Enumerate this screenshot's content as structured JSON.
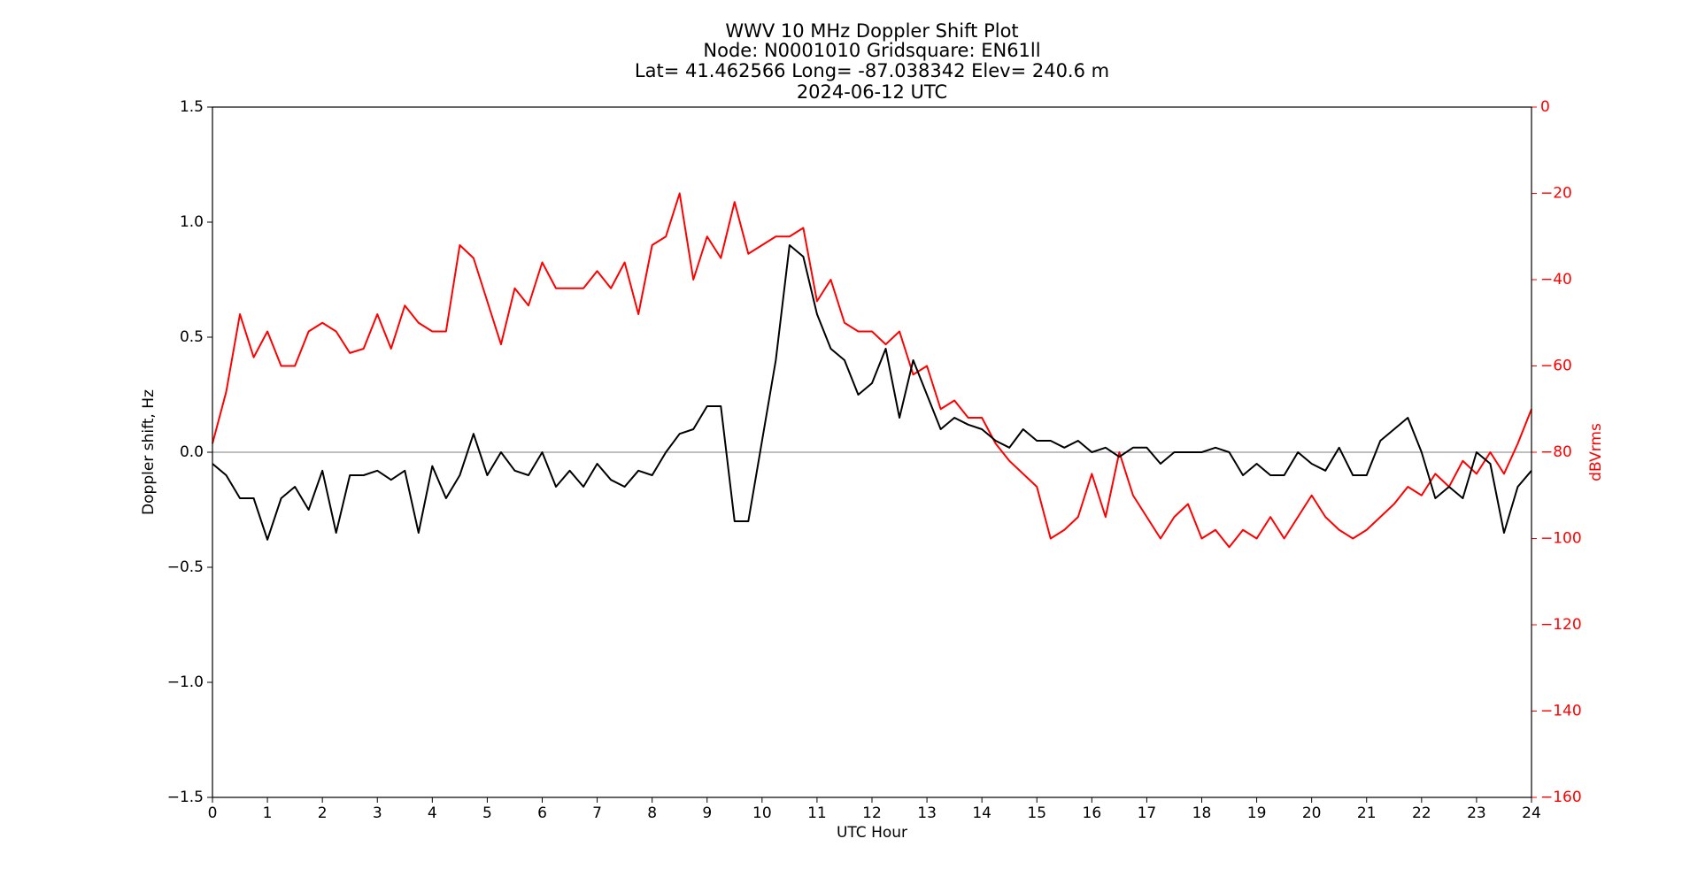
{
  "chart_data": {
    "type": "line",
    "title": [
      "WWV 10 MHz Doppler Shift Plot",
      "Node:  N0001010     Gridsquare:  EN61ll",
      "Lat= 41.462566    Long= -87.038342    Elev= 240.6 m",
      "2024-06-12  UTC"
    ],
    "xlabel": "UTC Hour",
    "ylabel": "Doppler shift, Hz",
    "y2label": "dBVrms",
    "y2color": "#ff0000",
    "xlim": [
      0,
      24
    ],
    "xticks": [
      0,
      1,
      2,
      3,
      4,
      5,
      6,
      7,
      8,
      9,
      10,
      11,
      12,
      13,
      14,
      15,
      16,
      17,
      18,
      19,
      20,
      21,
      22,
      23,
      24
    ],
    "ylim": [
      -1.5,
      1.5
    ],
    "yticks": [
      {
        "value": -1.5,
        "label": "−1.5"
      },
      {
        "value": -1.0,
        "label": "−1.0"
      },
      {
        "value": -0.5,
        "label": "−0.5"
      },
      {
        "value": 0,
        "label": "0.0"
      },
      0.5,
      {
        "value": 1.0,
        "label": "1.0"
      },
      1.5
    ],
    "y2lim": [
      -160,
      0
    ],
    "y2ticks": [
      {
        "value": -160,
        "label": "−160"
      },
      {
        "value": -140,
        "label": "−140"
      },
      {
        "value": -120,
        "label": "−120"
      },
      {
        "value": -100,
        "label": "−100"
      },
      {
        "value": -80,
        "label": "−80"
      },
      {
        "value": -60,
        "label": "−60"
      },
      {
        "value": -40,
        "label": "−40"
      },
      {
        "value": -20,
        "label": "−20"
      },
      0
    ],
    "hline": 0,
    "x": [
      0,
      0.25,
      0.5,
      0.75,
      1,
      1.25,
      1.5,
      1.75,
      2,
      2.25,
      2.5,
      2.75,
      3,
      3.25,
      3.5,
      3.75,
      4,
      4.25,
      4.5,
      4.75,
      5,
      5.25,
      5.5,
      5.75,
      6,
      6.25,
      6.5,
      6.75,
      7,
      7.25,
      7.5,
      7.75,
      8,
      8.25,
      8.5,
      8.75,
      9,
      9.25,
      9.5,
      9.75,
      10,
      10.25,
      10.5,
      10.75,
      11,
      11.25,
      11.5,
      11.75,
      12,
      12.25,
      12.5,
      12.75,
      13,
      13.25,
      13.5,
      13.75,
      14,
      14.25,
      14.5,
      14.75,
      15,
      15.25,
      15.5,
      15.75,
      16,
      16.25,
      16.5,
      16.75,
      17,
      17.25,
      17.5,
      17.75,
      18,
      18.25,
      18.5,
      18.75,
      19,
      19.25,
      19.5,
      19.75,
      20,
      20.25,
      20.5,
      20.75,
      21,
      21.25,
      21.5,
      21.75,
      22,
      22.25,
      22.5,
      22.75,
      23,
      23.25,
      23.5,
      23.75,
      24
    ],
    "series": [
      {
        "color": "#000000",
        "values": [
          -0.05,
          -0.1,
          -0.2,
          -0.2,
          -0.38,
          -0.2,
          -0.15,
          -0.25,
          -0.08,
          -0.35,
          -0.1,
          -0.1,
          -0.08,
          -0.12,
          -0.08,
          -0.35,
          -0.06,
          -0.2,
          -0.1,
          0.08,
          -0.1,
          0.0,
          -0.08,
          -0.1,
          0.0,
          -0.15,
          -0.08,
          -0.15,
          -0.05,
          -0.12,
          -0.15,
          -0.08,
          -0.1,
          0.0,
          0.08,
          0.1,
          0.2,
          0.2,
          -0.3,
          -0.3,
          0.05,
          0.4,
          0.9,
          0.85,
          0.6,
          0.45,
          0.4,
          0.25,
          0.3,
          0.45,
          0.15,
          0.4,
          0.25,
          0.1,
          0.15,
          0.12,
          0.1,
          0.05,
          0.02,
          0.1,
          0.05,
          0.05,
          0.02,
          0.05,
          0.0,
          0.02,
          -0.02,
          0.02,
          0.02,
          -0.05,
          0.0,
          0.0,
          0.0,
          0.02,
          0.0,
          -0.1,
          -0.05,
          -0.1,
          -0.1,
          0.0,
          -0.05,
          -0.08,
          0.02,
          -0.1,
          -0.1,
          0.05,
          0.1,
          0.15,
          0.0,
          -0.2,
          -0.15,
          -0.2,
          0.0,
          -0.05,
          -0.35,
          -0.15,
          -0.08
        ]
      },
      {
        "color": "#ff0000",
        "axis": "y2",
        "values": [
          -78,
          -66,
          -48,
          -58,
          -52,
          -60,
          -60,
          -52,
          -50,
          -52,
          -57,
          -56,
          -48,
          -56,
          -46,
          -50,
          -52,
          -52,
          -32,
          -35,
          -45,
          -55,
          -42,
          -46,
          -36,
          -42,
          -42,
          -42,
          -38,
          -42,
          -36,
          -48,
          -32,
          -30,
          -20,
          -40,
          -30,
          -35,
          -22,
          -34,
          -32,
          -30,
          -30,
          -28,
          -45,
          -40,
          -50,
          -52,
          -52,
          -55,
          -52,
          -62,
          -60,
          -70,
          -68,
          -72,
          -72,
          -78,
          -82,
          -85,
          -88,
          -100,
          -98,
          -95,
          -85,
          -95,
          -80,
          -90,
          -95,
          -100,
          -95,
          -92,
          -100,
          -98,
          -102,
          -98,
          -100,
          -95,
          -100,
          -95,
          -90,
          -95,
          -98,
          -100,
          -98,
          -95,
          -92,
          -88,
          -90,
          -85,
          -88,
          -82,
          -85,
          -80,
          -85,
          -78,
          -70
        ]
      }
    ]
  }
}
